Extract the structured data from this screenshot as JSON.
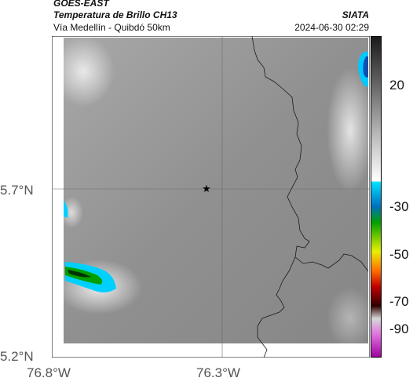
{
  "header": {
    "satellite": "GOES-EAST",
    "product": "Temperatura de Brillo CH13",
    "agency": "SIATA",
    "region": "Vía Medellín - Quibdó 50km",
    "timestamp": "2024-06-30 02:29"
  },
  "map": {
    "lat_ticks": [
      "5.7°N",
      "5.2°N"
    ],
    "lon_ticks": [
      "76.8°W",
      "76.3°W"
    ],
    "marker_icon": "star-icon",
    "background_color": "#8c8c8c",
    "border_color": "#000000"
  },
  "colorbar": {
    "tick_labels": [
      "20",
      "-30",
      "-50",
      "-70",
      "-90"
    ],
    "stops": [
      "#ffffff",
      "#808080",
      "#202020",
      "#00e0ff",
      "#0060c0",
      "#00c000",
      "#ffff00",
      "#ff6000",
      "#c00000",
      "#400000",
      "#c0c0c0",
      "#e040e0",
      "#a000a0"
    ]
  }
}
